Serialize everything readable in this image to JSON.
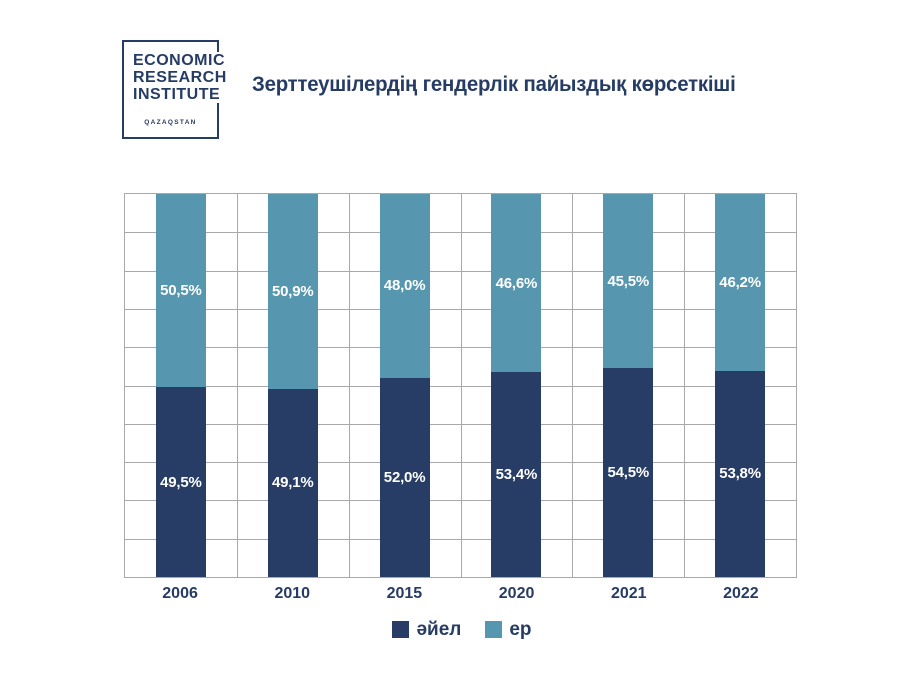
{
  "logo": {
    "lines": [
      "ECONOMIC",
      "RESEARCH",
      "INSTITUTE"
    ],
    "sub": "QAZAQSTAN"
  },
  "title": "Зерттеушілердің гендерлік пайыздық көрсеткіші",
  "colors": {
    "navy": "#263c64",
    "bar_women": "#273d66",
    "bar_men": "#5697af",
    "grid": "#a9a9a9",
    "label_text": "#ffffff",
    "background": "#ffffff"
  },
  "legend": [
    {
      "label": "әйел",
      "color": "#273d66"
    },
    {
      "label": "ер",
      "color": "#5697af"
    }
  ],
  "chart_data": {
    "type": "bar",
    "stacked": true,
    "title": "Зерттеушілердің гендерлік пайыздық көрсеткіші",
    "categories": [
      "2006",
      "2010",
      "2015",
      "2020",
      "2021",
      "2022"
    ],
    "series": [
      {
        "name": "әйел",
        "color": "#273d66",
        "values": [
          49.5,
          49.1,
          52.0,
          53.4,
          54.5,
          53.8
        ],
        "labels": [
          "49,5%",
          "49,1%",
          "52,0%",
          "53,4%",
          "54,5%",
          "53,8%"
        ]
      },
      {
        "name": "ер",
        "color": "#5697af",
        "values": [
          50.5,
          50.9,
          48.0,
          46.6,
          45.5,
          46.2
        ],
        "labels": [
          "50,5%",
          "50,9%",
          "48,0%",
          "46,6%",
          "45,5%",
          "46,2%"
        ]
      }
    ],
    "xlabel": "",
    "ylabel": "",
    "ylim": [
      0,
      100
    ],
    "y_step_pct": 10,
    "grid": true,
    "y_tick_labels_shown": false,
    "legend_position": "bottom"
  }
}
